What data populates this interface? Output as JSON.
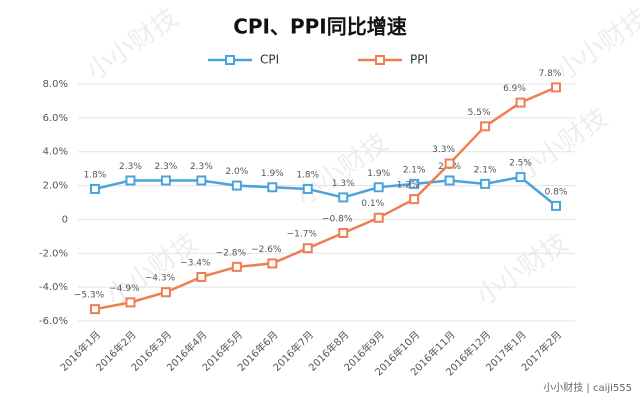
{
  "chart_data": {
    "type": "line",
    "title": "CPI、PPI同比增速",
    "categories": [
      "2016年1月",
      "2016年2月",
      "2016年3月",
      "2016年4月",
      "2016年5月",
      "2016年6月",
      "2016年7月",
      "2016年8月",
      "2016年9月",
      "2016年10月",
      "2016年11月",
      "2016年12月",
      "2017年1月",
      "2017年2月"
    ],
    "series": [
      {
        "name": "CPI",
        "color": "#4ba3dd",
        "values": [
          1.8,
          2.3,
          2.3,
          2.3,
          2.0,
          1.9,
          1.8,
          1.3,
          1.9,
          2.1,
          2.3,
          2.1,
          2.5,
          0.8
        ],
        "value_labels": [
          "1.8%",
          "2.3%",
          "2.3%",
          "2.3%",
          "2.0%",
          "1.9%",
          "1.8%",
          "1.3%",
          "1.9%",
          "2.1%",
          "2.3%",
          "2.1%",
          "2.5%",
          "0.8%"
        ]
      },
      {
        "name": "PPI",
        "color": "#f07d52",
        "values": [
          -5.3,
          -4.9,
          -4.3,
          -3.4,
          -2.8,
          -2.6,
          -1.7,
          -0.8,
          0.1,
          1.2,
          3.3,
          5.5,
          6.9,
          7.8
        ],
        "value_labels": [
          "−5.3%",
          "−4.9%",
          "−4.3%",
          "−3.4%",
          "−2.8%",
          "−2.6%",
          "−1.7%",
          "−0.8%",
          "0.1%",
          "1.2%",
          "3.3%",
          "5.5%",
          "6.9%",
          "7.8%"
        ]
      }
    ],
    "ylim": [
      -6,
      8
    ],
    "yticks": [
      {
        "value": -6,
        "label": "-6.0%"
      },
      {
        "value": -4,
        "label": "-4.0%"
      },
      {
        "value": -2,
        "label": "-2.0%"
      },
      0,
      {
        "value": 2,
        "label": "2.0%"
      },
      {
        "value": 4,
        "label": "4.0%"
      },
      {
        "value": 6,
        "label": "6.0%"
      },
      {
        "value": 8,
        "label": "8.0%"
      }
    ],
    "grid": true,
    "watermark": "小小财技",
    "footer": "小小财技 | caiji555"
  }
}
